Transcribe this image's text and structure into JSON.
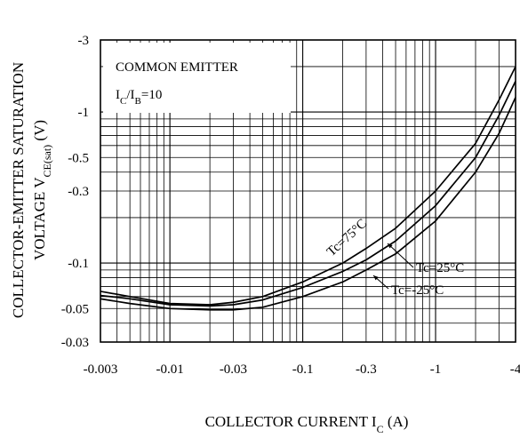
{
  "chart_data": {
    "type": "line",
    "x_scale": "log",
    "y_scale": "log",
    "xlim": [
      -0.003,
      -4
    ],
    "ylim": [
      -0.03,
      -3
    ],
    "grid": true,
    "xlabel": {
      "main": "COLLECTOR CURRENT  I",
      "sub": "C",
      "tail": " (A)"
    },
    "ylabel": {
      "line1": "COLLECTOR-EMITTER SATURATION",
      "line2_main": "VOLTAGE  V",
      "line2_sub": "CE(sat)",
      "line2_tail": "  (V)"
    },
    "x_ticks": [
      {
        "value": -0.003,
        "label": "-0.003"
      },
      {
        "value": -0.01,
        "label": "-0.01"
      },
      {
        "value": -0.03,
        "label": "-0.03"
      },
      {
        "value": -0.1,
        "label": "-0.1"
      },
      {
        "value": -0.3,
        "label": "-0.3"
      },
      {
        "value": -1,
        "label": "-1"
      },
      {
        "value": -4,
        "label": "-4"
      }
    ],
    "y_ticks": [
      {
        "value": -3,
        "label": "-3"
      },
      {
        "value": -1,
        "label": "-1"
      },
      {
        "value": -0.5,
        "label": "-0.5"
      },
      {
        "value": -0.3,
        "label": "-0.3"
      },
      {
        "value": -0.1,
        "label": "-0.1"
      },
      {
        "value": -0.05,
        "label": "-0.05"
      },
      {
        "value": -0.03,
        "label": "-0.03"
      }
    ],
    "annotation": {
      "line1": "COMMON EMITTER",
      "line2_a": "I",
      "line2_a_sub": "C",
      "line2_b": "/I",
      "line2_b_sub": "B",
      "line2_tail": "=10"
    },
    "series": [
      {
        "name": "Tc=75°C",
        "x": [
          -0.003,
          -0.005,
          -0.01,
          -0.02,
          -0.03,
          -0.05,
          -0.1,
          -0.2,
          -0.3,
          -0.5,
          -1,
          -2,
          -3,
          -4
        ],
        "y": [
          -0.065,
          -0.06,
          -0.054,
          -0.053,
          -0.055,
          -0.06,
          -0.075,
          -0.1,
          -0.125,
          -0.17,
          -0.3,
          -0.62,
          -1.2,
          -2.0
        ]
      },
      {
        "name": "Tc=25°C",
        "x": [
          -0.003,
          -0.005,
          -0.01,
          -0.02,
          -0.03,
          -0.05,
          -0.1,
          -0.2,
          -0.3,
          -0.5,
          -1,
          -2,
          -3,
          -4
        ],
        "y": [
          -0.061,
          -0.058,
          -0.053,
          -0.052,
          -0.053,
          -0.057,
          -0.069,
          -0.088,
          -0.105,
          -0.14,
          -0.24,
          -0.5,
          -0.95,
          -1.6
        ]
      },
      {
        "name": "Tc=-25°C",
        "x": [
          -0.003,
          -0.005,
          -0.01,
          -0.02,
          -0.03,
          -0.05,
          -0.1,
          -0.2,
          -0.3,
          -0.5,
          -1,
          -2,
          -3,
          -4
        ],
        "y": [
          -0.058,
          -0.054,
          -0.05,
          -0.049,
          -0.049,
          -0.051,
          -0.06,
          -0.075,
          -0.09,
          -0.115,
          -0.19,
          -0.4,
          -0.72,
          -1.25
        ]
      }
    ]
  }
}
